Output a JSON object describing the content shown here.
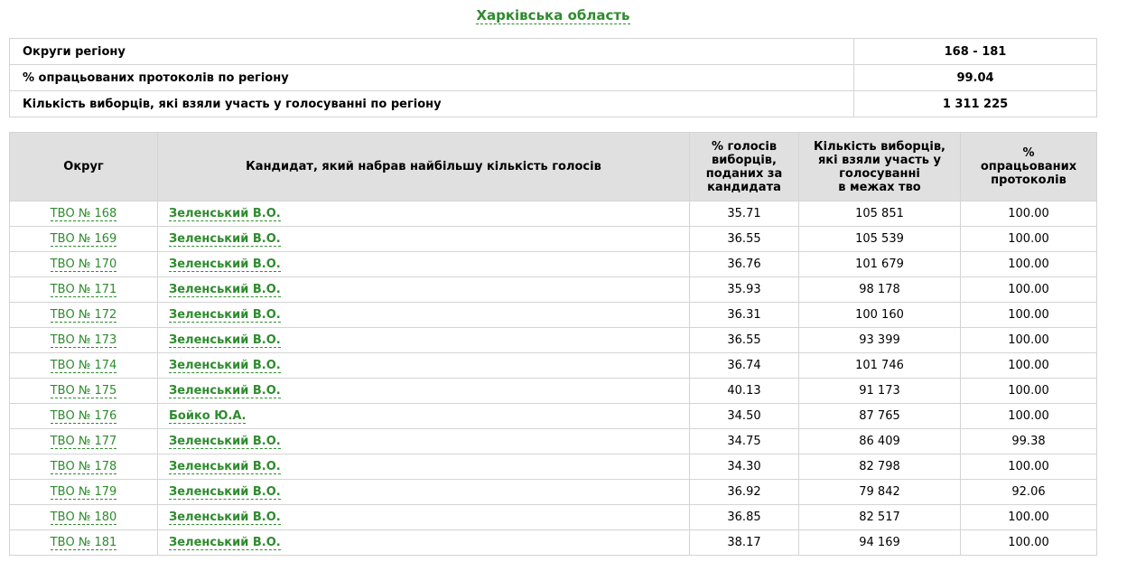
{
  "region": {
    "title": "Харківська область"
  },
  "summary": [
    {
      "label": "Округи регіону",
      "value": "168 - 181"
    },
    {
      "label": "% опрацьованих протоколів по регіону",
      "value": "99.04"
    },
    {
      "label": "Кількість виборців, які взяли участь у голосуванні по регіону",
      "value": "1 311 225"
    }
  ],
  "results": {
    "headers": {
      "district": "Округ",
      "candidate": "Кандидат, який набрав найбільшу кількість голосів",
      "percent_l1": "% голосів",
      "percent_l2": "виборців,",
      "percent_l3": "поданих за",
      "percent_l4": "кандидата",
      "voters_l1": "Кількість виборців,",
      "voters_l2": "які взяли участь у",
      "voters_l3": "голосуванні",
      "voters_l4": "в межах тво",
      "processed_l1": "%",
      "processed_l2": "опрацьованих",
      "processed_l3": "протоколів"
    },
    "rows": [
      {
        "district": "ТВО № 168",
        "candidate": "Зеленський В.О.",
        "percent": "35.71",
        "voters": "105 851",
        "processed": "100.00"
      },
      {
        "district": "ТВО № 169",
        "candidate": "Зеленський В.О.",
        "percent": "36.55",
        "voters": "105 539",
        "processed": "100.00"
      },
      {
        "district": "ТВО № 170",
        "candidate": "Зеленський В.О.",
        "percent": "36.76",
        "voters": "101 679",
        "processed": "100.00"
      },
      {
        "district": "ТВО № 171",
        "candidate": "Зеленський В.О.",
        "percent": "35.93",
        "voters": "98 178",
        "processed": "100.00"
      },
      {
        "district": "ТВО № 172",
        "candidate": "Зеленський В.О.",
        "percent": "36.31",
        "voters": "100 160",
        "processed": "100.00"
      },
      {
        "district": "ТВО № 173",
        "candidate": "Зеленський В.О.",
        "percent": "36.55",
        "voters": "93 399",
        "processed": "100.00"
      },
      {
        "district": "ТВО № 174",
        "candidate": "Зеленський В.О.",
        "percent": "36.74",
        "voters": "101 746",
        "processed": "100.00"
      },
      {
        "district": "ТВО № 175",
        "candidate": "Зеленський В.О.",
        "percent": "40.13",
        "voters": "91 173",
        "processed": "100.00"
      },
      {
        "district": "ТВО № 176",
        "candidate": "Бойко Ю.А.",
        "percent": "34.50",
        "voters": "87 765",
        "processed": "100.00"
      },
      {
        "district": "ТВО № 177",
        "candidate": "Зеленський В.О.",
        "percent": "34.75",
        "voters": "86 409",
        "processed": "99.38"
      },
      {
        "district": "ТВО № 178",
        "candidate": "Зеленський В.О.",
        "percent": "34.30",
        "voters": "82 798",
        "processed": "100.00"
      },
      {
        "district": "ТВО № 179",
        "candidate": "Зеленський В.О.",
        "percent": "36.92",
        "voters": "79 842",
        "processed": "92.06"
      },
      {
        "district": "ТВО № 180",
        "candidate": "Зеленський В.О.",
        "percent": "36.85",
        "voters": "82 517",
        "processed": "100.00"
      },
      {
        "district": "ТВО № 181",
        "candidate": "Зеленський В.О.",
        "percent": "38.17",
        "voters": "94 169",
        "processed": "100.00"
      }
    ]
  },
  "colors": {
    "link": "#2e8b2e",
    "header_bg": "#e0e0e0",
    "border": "#d4d4d4"
  }
}
